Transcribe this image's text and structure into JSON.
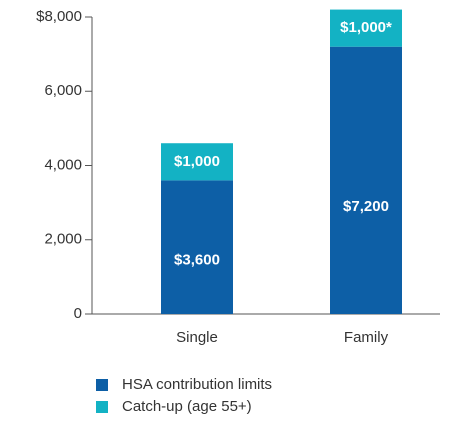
{
  "chart_data": {
    "type": "stacked_bar",
    "categories": [
      "Single",
      "Family"
    ],
    "series": [
      {
        "name": "HSA contribution limits",
        "color": "#0d5fa6",
        "values": [
          3600,
          7200
        ],
        "value_labels": [
          "$3,600",
          "$7,200"
        ]
      },
      {
        "name": "Catch-up (age 55+)",
        "color": "#13b2c4",
        "values": [
          1000,
          1000
        ],
        "value_labels": [
          "$1,000",
          "$1,000*"
        ]
      }
    ],
    "ylim": [
      0,
      8000
    ],
    "yticks": [
      0,
      {
        "value": 2000,
        "label": "2,000"
      },
      {
        "value": 4000,
        "label": "4,000"
      },
      {
        "value": 6000,
        "label": "6,000"
      },
      {
        "value": 8000,
        "label": "$8,000"
      }
    ]
  }
}
